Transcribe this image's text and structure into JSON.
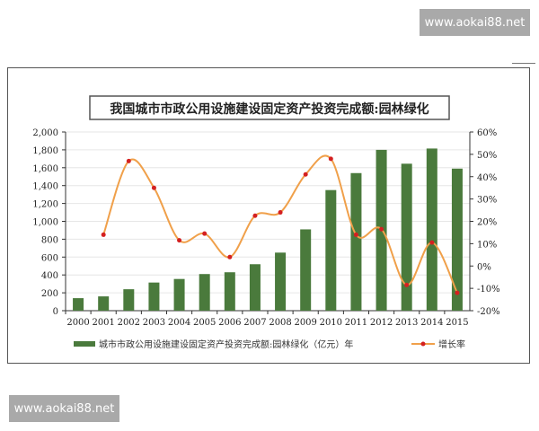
{
  "watermarks": [
    "www.aokai88.net",
    "www.aokai88.net"
  ],
  "chart_data": {
    "type": "bar+line",
    "title": "我国城市市政公用设施建设固定资产投资完成额:园林绿化",
    "categories": [
      "2000",
      "2001",
      "2002",
      "2003",
      "2004",
      "2005",
      "2006",
      "2007",
      "2008",
      "2009",
      "2010",
      "2011",
      "2012",
      "2013",
      "2014",
      "2015"
    ],
    "series": [
      {
        "name": "城市市政公用设施建设固定资产投资完成额:园林绿化（亿元）年",
        "type": "bar",
        "axis": "left",
        "color": "#4a7a3c",
        "values": [
          140,
          160,
          240,
          315,
          355,
          410,
          430,
          520,
          650,
          910,
          1350,
          1540,
          1800,
          1645,
          1815,
          1590
        ]
      },
      {
        "name": "增长率",
        "type": "line",
        "axis": "right",
        "color": "#f0a04a",
        "marker_color": "#d42020",
        "values": [
          null,
          14,
          47,
          35,
          11.5,
          14.5,
          4,
          22.5,
          24,
          41,
          48,
          14,
          16.5,
          -8.5,
          10.5,
          -12
        ]
      }
    ],
    "yleft": {
      "range": [
        0,
        2000
      ],
      "ticks": [
        "0",
        "200",
        "400",
        "600",
        "800",
        "1,000",
        "1,200",
        "1,400",
        "1,600",
        "1,800",
        "2,000"
      ]
    },
    "yright": {
      "range": [
        -20,
        60
      ],
      "ticks": [
        "-20%",
        "-10%",
        "0%",
        "10%",
        "20%",
        "30%",
        "40%",
        "50%",
        "60%"
      ]
    },
    "grid": true,
    "legend": "bottom"
  }
}
